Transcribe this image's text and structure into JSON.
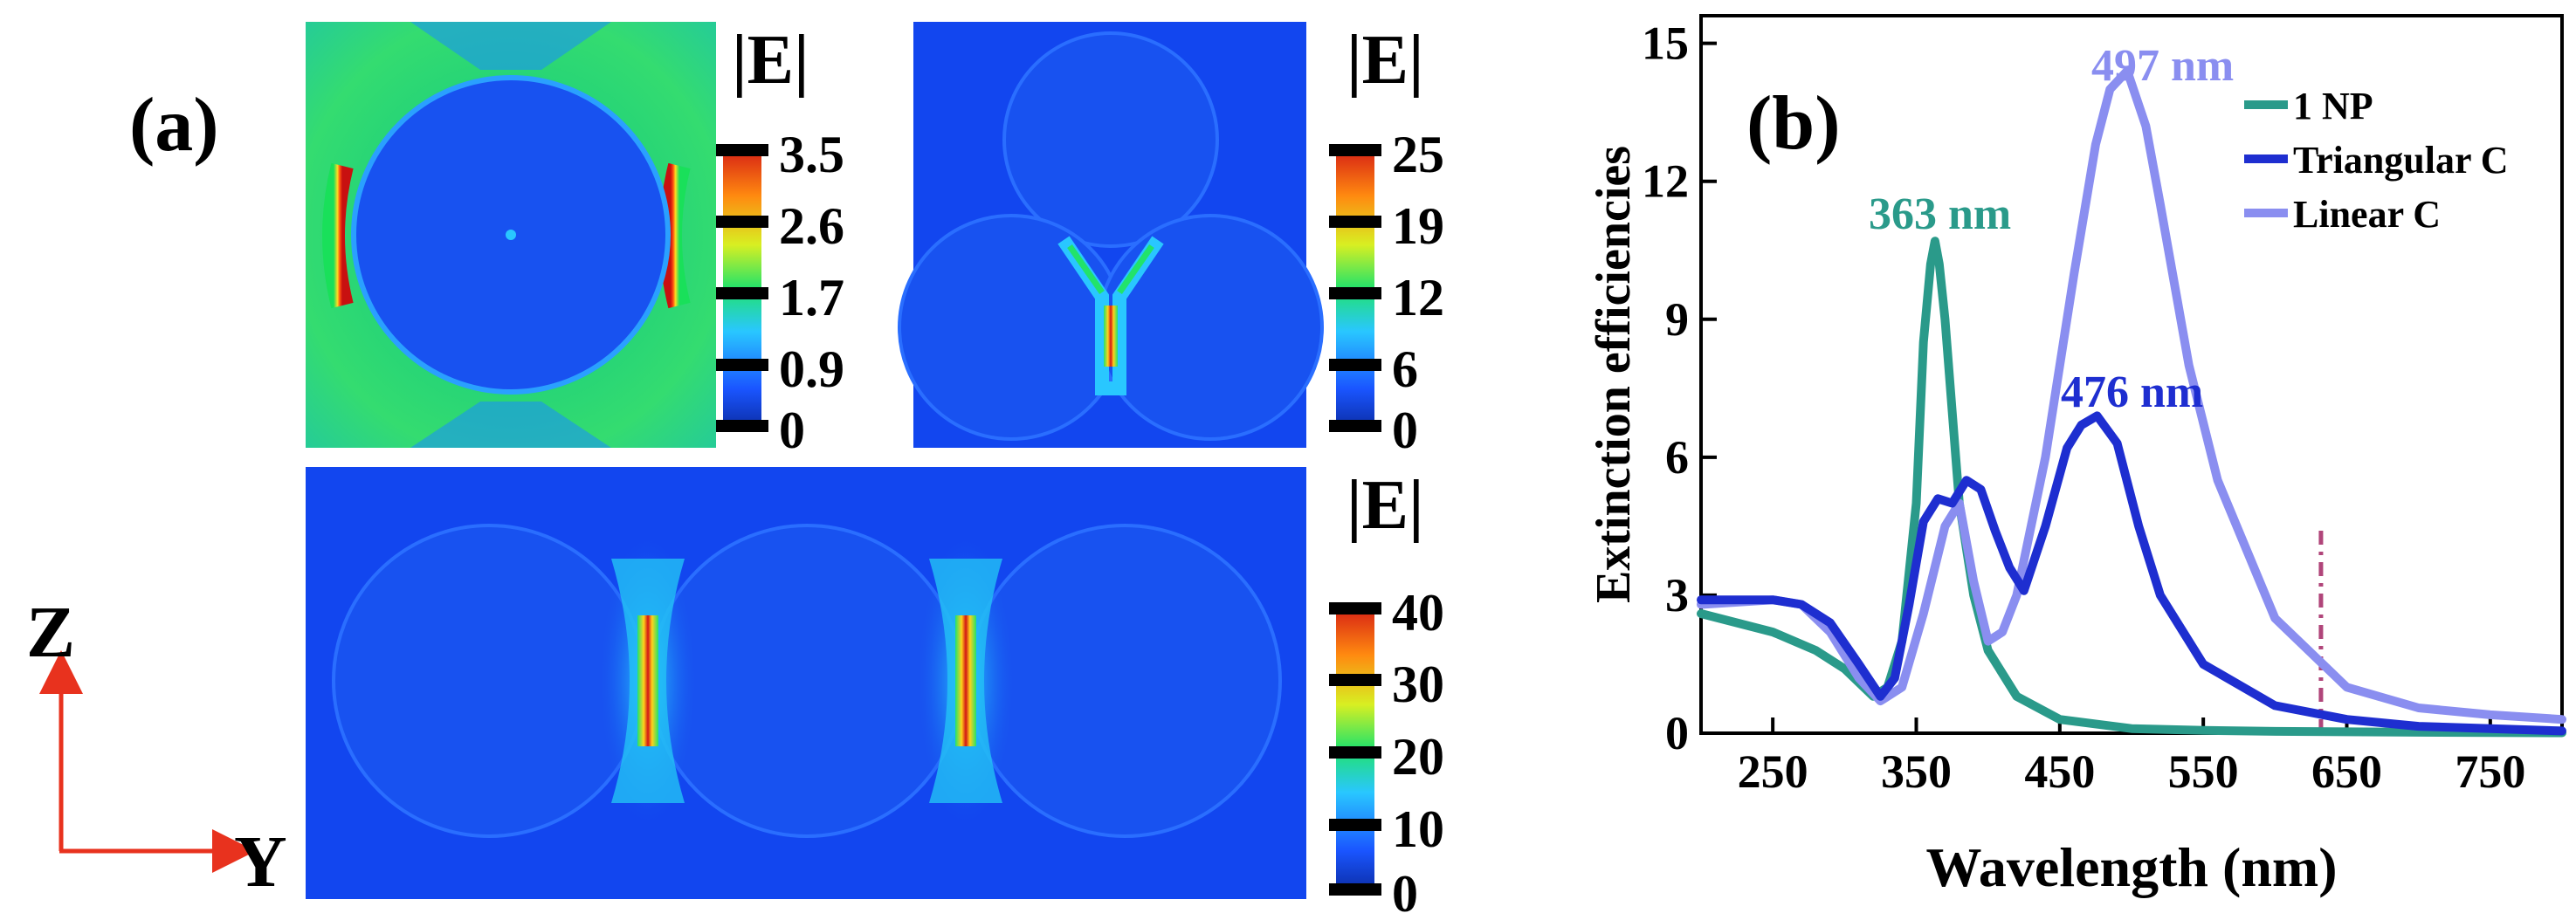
{
  "panel_a": {
    "label": "(a)",
    "maps": [
      {
        "title": "|E|",
        "ticks": [
          "3.5",
          "2.6",
          "1.7",
          "0.9",
          "0"
        ]
      },
      {
        "title": "|E|",
        "ticks": [
          "25",
          "19",
          "12",
          "6",
          "0"
        ]
      },
      {
        "title": "|E|",
        "ticks": [
          "40",
          "30",
          "20",
          "10",
          "0"
        ]
      }
    ],
    "axes": {
      "z": "Z",
      "y": "Y"
    }
  },
  "panel_b": {
    "label": "(b)"
  },
  "colors": {
    "np1": "#2a9a8a",
    "triangular": "#1e2ed0",
    "linear": "#8a8ef0",
    "marker": "#b0457a"
  },
  "chart_data": {
    "type": "line",
    "xlabel": "Wavelength (nm)",
    "ylabel": "Extinction efficiencies",
    "xlim": [
      200,
      800
    ],
    "ylim": [
      0,
      15.6
    ],
    "xticks": [
      250,
      350,
      450,
      550,
      650,
      750
    ],
    "yticks": [
      0,
      3,
      6,
      9,
      12,
      15
    ],
    "vline_x": 632,
    "legend_position": "top-right",
    "series": [
      {
        "name": "1 NP",
        "color": "#2a9a8a",
        "x": [
          200,
          250,
          280,
          300,
          320,
          330,
          340,
          350,
          355,
          360,
          363,
          366,
          370,
          375,
          380,
          390,
          400,
          420,
          450,
          500,
          550,
          600,
          650,
          700,
          800
        ],
        "y": [
          2.6,
          2.2,
          1.8,
          1.4,
          0.8,
          1.0,
          2.0,
          5.0,
          8.5,
          10.2,
          10.7,
          10.2,
          9.0,
          7.0,
          5.0,
          3.0,
          1.8,
          0.8,
          0.3,
          0.1,
          0.06,
          0.04,
          0.03,
          0.02,
          0.01
        ]
      },
      {
        "name": "Triangular C",
        "color": "#1e2ed0",
        "x": [
          200,
          250,
          270,
          290,
          310,
          325,
          335,
          345,
          355,
          365,
          375,
          385,
          395,
          405,
          415,
          425,
          440,
          455,
          465,
          476,
          490,
          505,
          520,
          550,
          600,
          650,
          700,
          800
        ],
        "y": [
          2.9,
          2.9,
          2.8,
          2.4,
          1.5,
          0.8,
          1.2,
          2.8,
          4.6,
          5.1,
          5.0,
          5.5,
          5.3,
          4.4,
          3.6,
          3.1,
          4.5,
          6.2,
          6.7,
          6.9,
          6.3,
          4.5,
          3.0,
          1.5,
          0.6,
          0.3,
          0.15,
          0.05
        ]
      },
      {
        "name": "Linear C",
        "color": "#8a8ef0",
        "x": [
          200,
          250,
          270,
          290,
          310,
          325,
          340,
          355,
          370,
          380,
          390,
          400,
          410,
          420,
          440,
          460,
          475,
          485,
          497,
          510,
          520,
          540,
          560,
          600,
          650,
          700,
          750,
          800
        ],
        "y": [
          2.8,
          2.9,
          2.8,
          2.2,
          1.2,
          0.7,
          1.0,
          2.6,
          4.5,
          5.0,
          3.3,
          2.0,
          2.2,
          3.0,
          6.0,
          10.0,
          12.8,
          14.0,
          14.4,
          13.2,
          11.5,
          8.0,
          5.5,
          2.5,
          1.0,
          0.55,
          0.4,
          0.3
        ]
      }
    ],
    "annotations": [
      {
        "text": "363 nm",
        "series": "1 NP"
      },
      {
        "text": "476 nm",
        "series": "Triangular C"
      },
      {
        "text": "497 nm",
        "series": "Linear C"
      }
    ]
  }
}
